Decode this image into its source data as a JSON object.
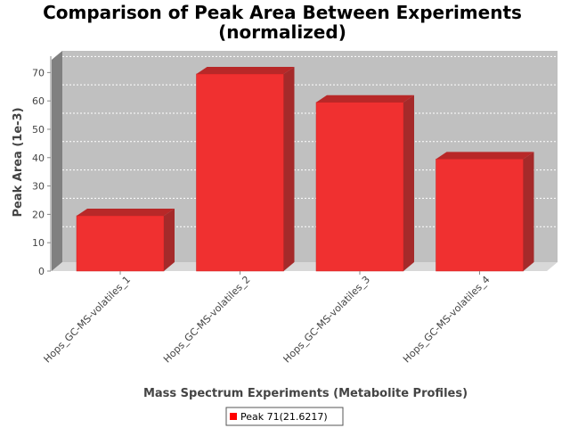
{
  "chart_data": {
    "type": "bar",
    "title_lines": [
      "Comparison of Peak Area Between Experiments",
      "(normalized)"
    ],
    "xlabel": "Mass Spectrum Experiments (Metabolite Profiles)",
    "ylabel": "Peak Area (1e-3)",
    "categories": [
      "Hops_GC-MS-volatiles_1",
      "Hops_GC-MS-volatiles_2",
      "Hops_GC-MS-volatiles_3",
      "Hops_GC-MS-volatiles_4"
    ],
    "series": [
      {
        "name": "Peak 71(21.6217)",
        "values": [
          19.5,
          69.5,
          59.5,
          39.5
        ],
        "color": "#ff0000"
      }
    ],
    "ylim": [
      0,
      72
    ],
    "yticks": [
      "0",
      "10",
      "20",
      "30",
      "40",
      "50",
      "60",
      "70"
    ],
    "grid": true,
    "legend_position": "bottom-center",
    "colors": {
      "plot_background": "#c0c0c0",
      "plot_side": "#808080",
      "grid": "#ffffff",
      "bar": "#ff0000"
    }
  }
}
